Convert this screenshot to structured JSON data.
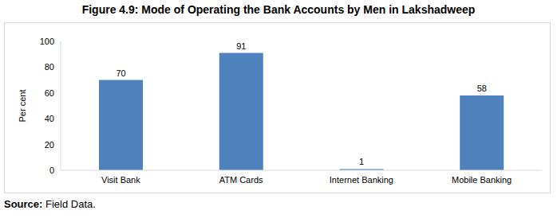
{
  "chart_data": {
    "type": "bar",
    "title": "Figure 4.9: Mode of Operating the Bank Accounts by Men in Lakshadweep",
    "y_label": "Per cent",
    "categories": [
      "Visit  Bank",
      "ATM Cards",
      "Internet Banking",
      "Mobile Banking"
    ],
    "values": [
      70,
      91,
      1,
      58
    ],
    "color": "#4f81bd",
    "ylim": [
      0,
      100
    ],
    "yticks": [
      0,
      20,
      40,
      60,
      80,
      100
    ],
    "grid": false,
    "data_labels": true,
    "source": "Source: Field Data."
  }
}
